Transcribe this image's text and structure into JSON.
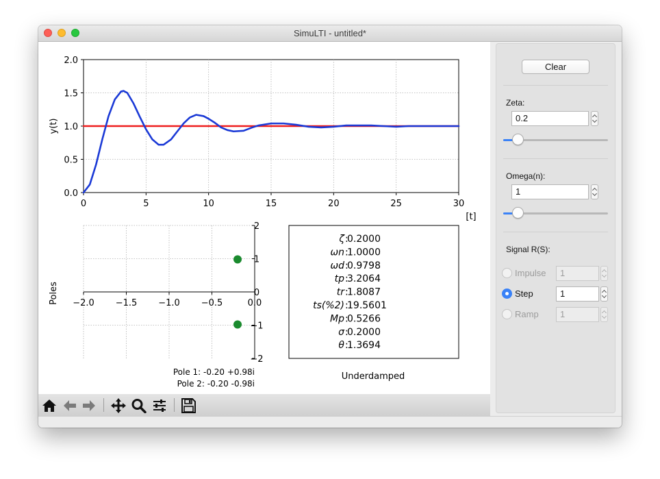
{
  "window": {
    "title": "SimuLTI - untitled*"
  },
  "step_plot": {
    "ylabel": "y(t)",
    "xlabel": "[t]",
    "x_ticks": [
      "0",
      "5",
      "10",
      "15",
      "20",
      "25",
      "30"
    ],
    "y_ticks": [
      "0.0",
      "0.5",
      "1.0",
      "1.5",
      "2.0"
    ]
  },
  "pole_plot": {
    "ylabel": "Poles",
    "x_ticks": [
      "−2.0",
      "−1.5",
      "−1.0",
      "−0.5",
      "0.0"
    ],
    "y_ticks": [
      "2",
      "1",
      "0",
      "−1",
      "−2"
    ],
    "pole_labels": [
      "Pole 1: -0.20 +0.98i",
      "Pole 2: -0.20  -0.98i"
    ]
  },
  "info_box": {
    "labels": [
      "ζ",
      "ωn",
      "ωd",
      "tp",
      "tr",
      "ts(%2)",
      "Mp",
      "σ",
      "θ"
    ],
    "values": [
      "0.2000",
      "1.0000",
      "0.9798",
      "3.2064",
      "1.8087",
      "19.5601",
      "0.5266",
      "0.2000",
      "1.3694"
    ],
    "classification": "Underdamped"
  },
  "panel": {
    "clear_label": "Clear",
    "zeta_label": "Zeta:",
    "zeta_value": "0.2",
    "omega_label": "Omega(n):",
    "omega_value": "1",
    "signal_label": "Signal R(S):",
    "signals": [
      {
        "label": "Impulse",
        "value": "1",
        "enabled": false,
        "checked": false
      },
      {
        "label": "Step",
        "value": "1",
        "enabled": true,
        "checked": true
      },
      {
        "label": "Ramp",
        "value": "1",
        "enabled": false,
        "checked": false
      }
    ]
  },
  "toolbar": [
    "home-icon",
    "back-icon",
    "forward-icon",
    "pan-icon",
    "zoom-icon",
    "configure-icon",
    "save-icon"
  ],
  "chart_data": [
    {
      "type": "line",
      "title": "",
      "xlabel": "[t]",
      "ylabel": "y(t)",
      "xlim": [
        0,
        30
      ],
      "ylim": [
        0,
        2
      ],
      "grid": true,
      "series": [
        {
          "color": "#1a39d6",
          "x": [
            0,
            0.5,
            1,
            1.5,
            2,
            2.5,
            3,
            3.2,
            3.5,
            4,
            4.5,
            5,
            5.5,
            6,
            6.4,
            7,
            7.5,
            8,
            8.5,
            9,
            9.6,
            10,
            10.5,
            11,
            11.5,
            12,
            12.8,
            13.5,
            14,
            15,
            16,
            17,
            18,
            19,
            20,
            21,
            22,
            23,
            24,
            25,
            26,
            27,
            28,
            29,
            30
          ],
          "y": [
            0,
            0.12,
            0.42,
            0.8,
            1.15,
            1.4,
            1.52,
            1.53,
            1.5,
            1.34,
            1.14,
            0.95,
            0.8,
            0.72,
            0.72,
            0.8,
            0.92,
            1.04,
            1.13,
            1.17,
            1.15,
            1.11,
            1.05,
            0.98,
            0.94,
            0.92,
            0.93,
            0.98,
            1.01,
            1.04,
            1.04,
            1.02,
            0.99,
            0.98,
            0.99,
            1.01,
            1.01,
            1.01,
            1.0,
            0.99,
            1.0,
            1.0,
            1.0,
            1.0,
            1.0
          ]
        },
        {
          "color": "#ee1d1d",
          "x": [
            0,
            30
          ],
          "y": [
            1,
            1
          ]
        }
      ]
    },
    {
      "type": "scatter",
      "title": "",
      "xlabel": "",
      "ylabel": "Poles",
      "xlim": [
        -2,
        0
      ],
      "ylim": [
        -2,
        2
      ],
      "grid": true,
      "series": [
        {
          "color": "#1a8a2e",
          "x": [
            -0.2,
            -0.2
          ],
          "y": [
            0.98,
            -0.98
          ]
        }
      ]
    }
  ]
}
